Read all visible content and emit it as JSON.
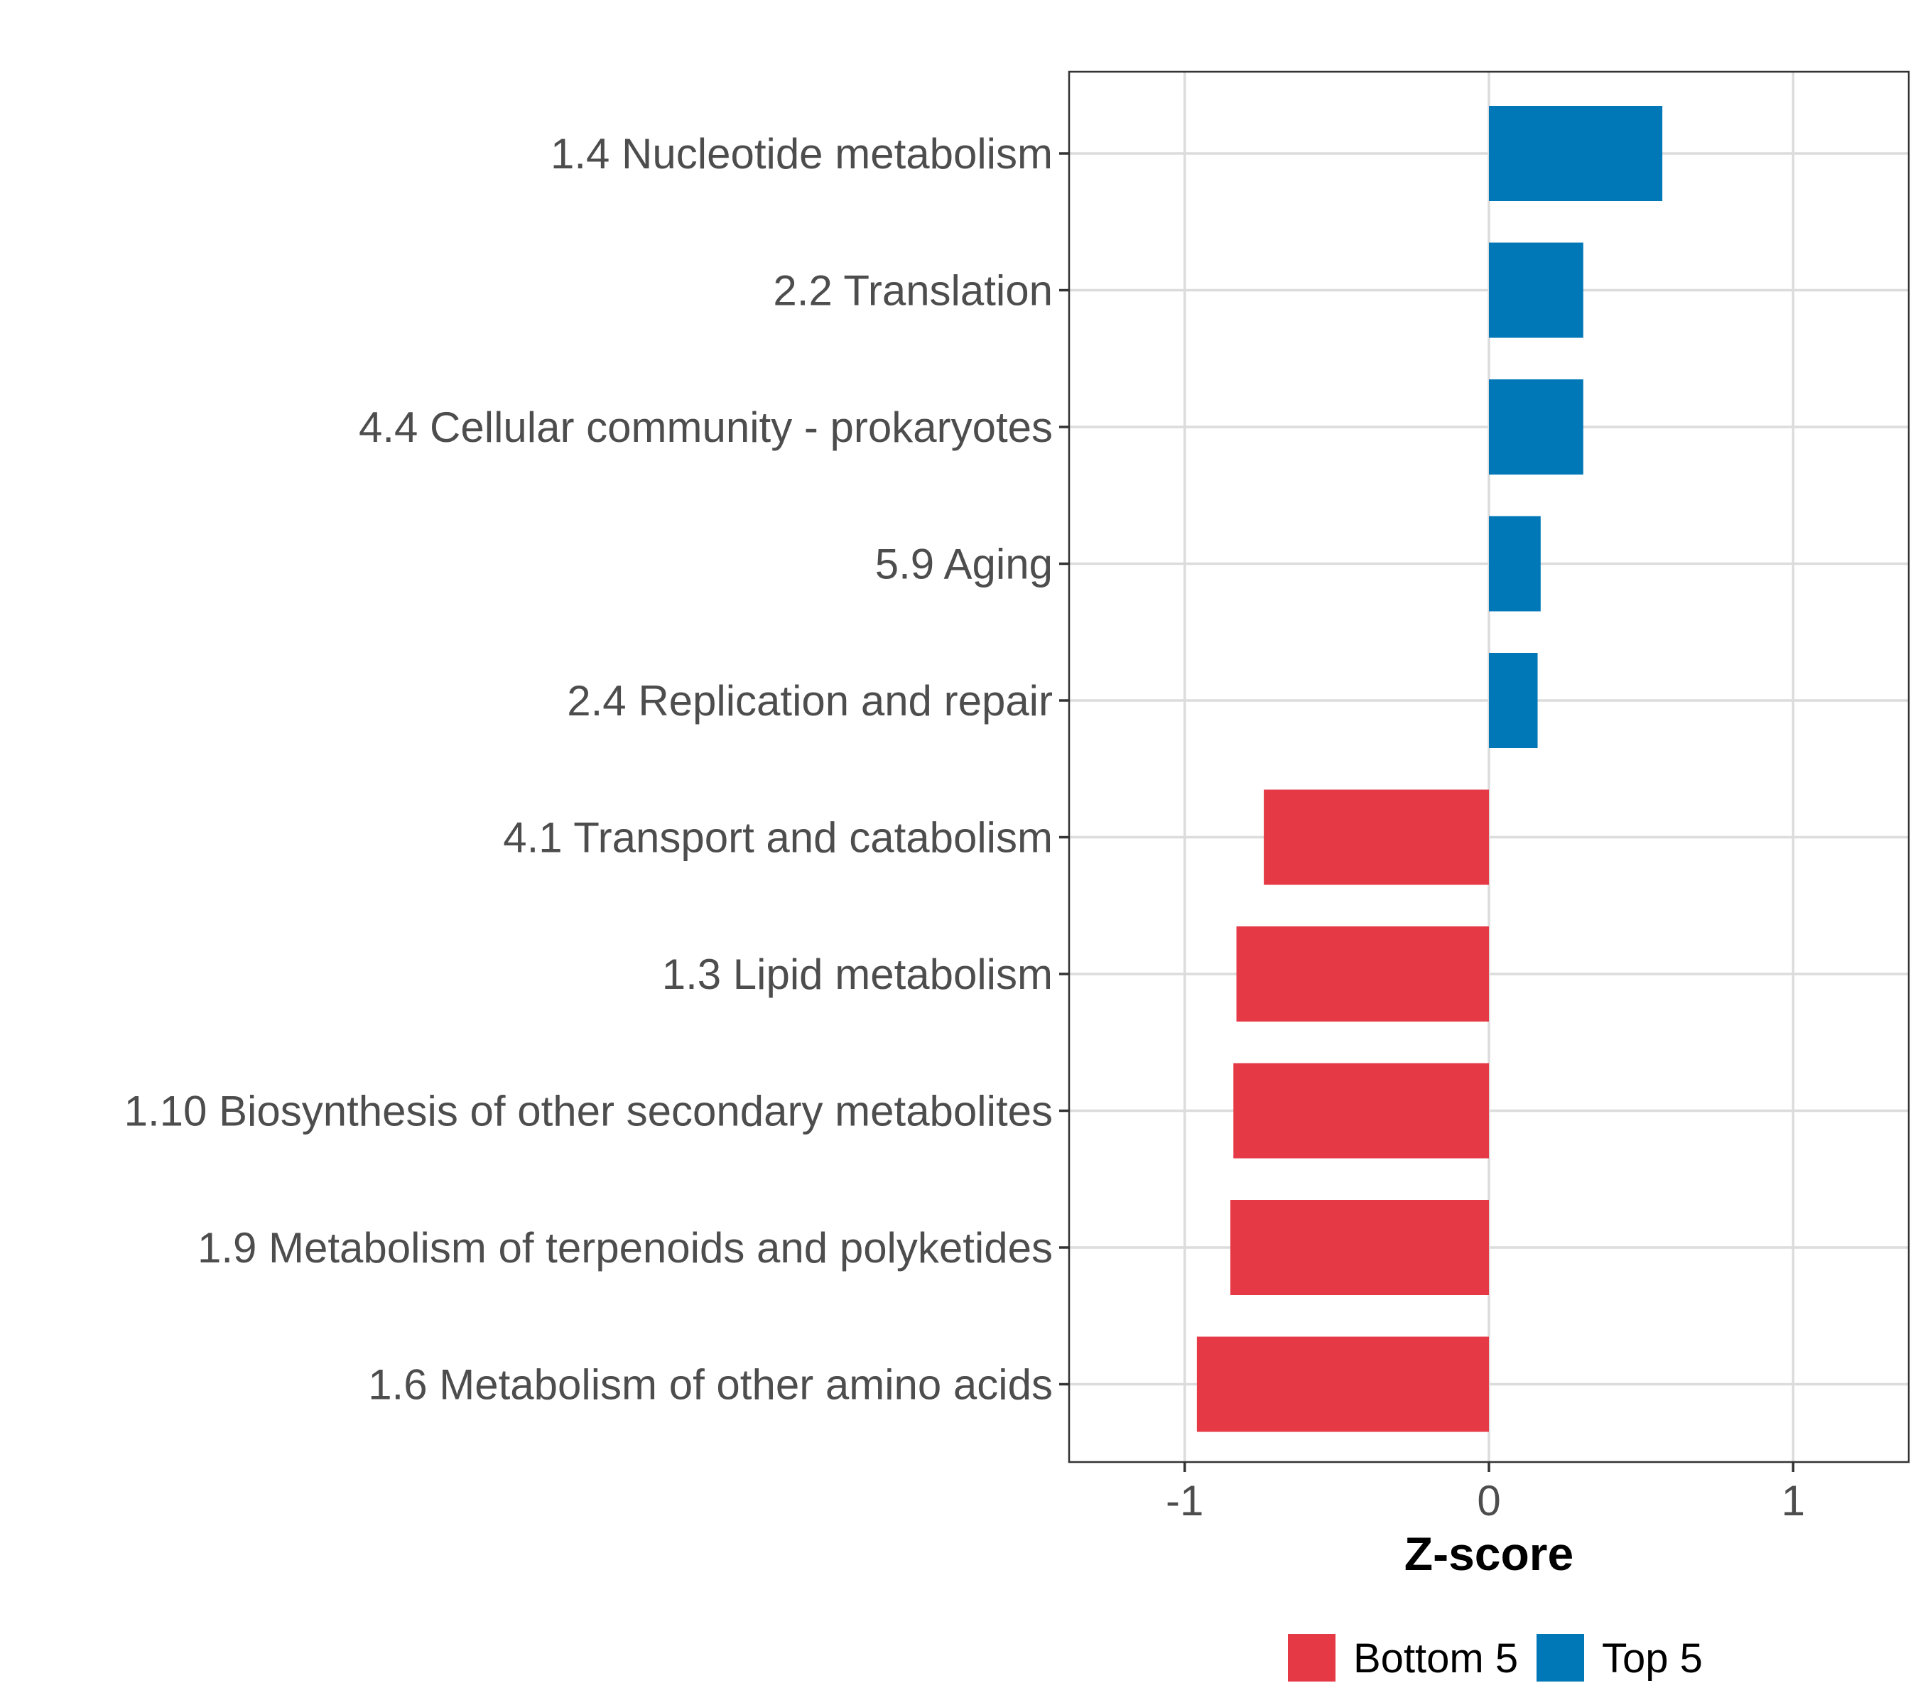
{
  "chart_data": {
    "type": "bar",
    "orientation": "horizontal",
    "categories": [
      "1.4 Nucleotide metabolism",
      "2.2 Translation",
      "4.4 Cellular community - prokaryotes",
      "5.9 Aging",
      "2.4 Replication and repair",
      "4.1 Transport and catabolism",
      "1.3 Lipid metabolism",
      "1.10 Biosynthesis of other secondary metabolites",
      "1.9 Metabolism of terpenoids and polyketides",
      "1.6 Metabolism of other amino acids"
    ],
    "values": [
      0.57,
      0.31,
      0.31,
      0.17,
      0.16,
      -0.74,
      -0.83,
      -0.84,
      -0.85,
      -0.96
    ],
    "groups": [
      "Top 5",
      "Top 5",
      "Top 5",
      "Top 5",
      "Top 5",
      "Bottom 5",
      "Bottom 5",
      "Bottom 5",
      "Bottom 5",
      "Bottom 5"
    ],
    "xlabel": "Z-score",
    "ylabel": "",
    "xlim": [
      -1.38,
      1.38
    ],
    "xticks": [
      -1,
      0,
      1
    ],
    "xtick_labels": [
      "-1",
      "0",
      "1"
    ],
    "grid": true,
    "legend": {
      "position": "bottom",
      "entries": [
        {
          "label": "Bottom 5",
          "color": "#e63946"
        },
        {
          "label": "Top 5",
          "color": "#0077b6"
        }
      ]
    }
  }
}
